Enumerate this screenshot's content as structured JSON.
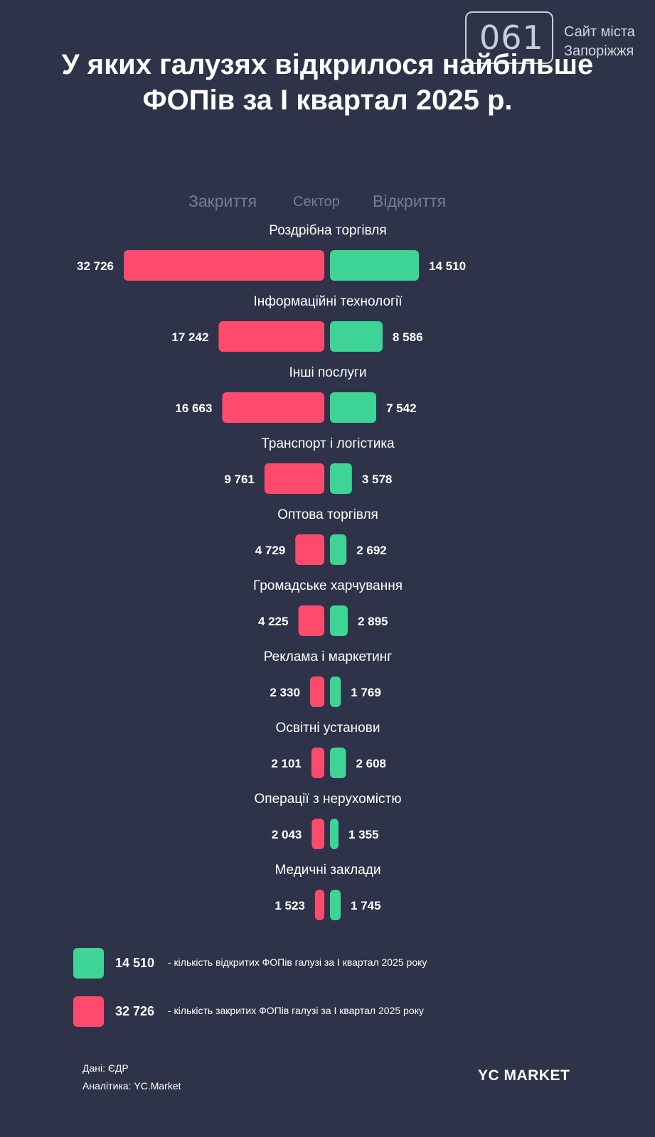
{
  "logo": {
    "number": "061",
    "line1": "Сайт міста",
    "line2": "Запоріжжя"
  },
  "title": {
    "line1": "У яких галузях відкрилося найбільше",
    "line2": "ФОПів за I квартал 2025 р."
  },
  "headers": {
    "closed": "Закриття",
    "sector": "Сектор",
    "opened": "Відкриття"
  },
  "colors": {
    "background": "#2f3349",
    "closed": "#fe4b6d",
    "opened": "#3dd496"
  },
  "chart_data": {
    "type": "bar",
    "orientation": "horizontal, diverging",
    "categories": [
      "Роздрібна торгівля",
      "Інформаційні технології",
      "Інші послуги",
      "Транспорт і логістика",
      "Оптова торгівля",
      "Громадське харчування",
      "Реклама і маркетинг",
      "Освітні установи",
      "Операції з нерухомістю",
      "Медичні заклади"
    ],
    "series": [
      {
        "name": "Закриття",
        "color": "#fe4b6d",
        "values": [
          32726,
          17242,
          16663,
          9761,
          4729,
          4225,
          2330,
          2101,
          2043,
          1523
        ],
        "labels": [
          "32 726",
          "17 242",
          "16 663",
          "9 761",
          "4 729",
          "4 225",
          "2 330",
          "2 101",
          "2 043",
          "1 523"
        ]
      },
      {
        "name": "Відкриття",
        "color": "#3dd496",
        "values": [
          14510,
          8586,
          7542,
          3578,
          2692,
          2895,
          1769,
          2608,
          1355,
          1745
        ],
        "labels": [
          "14 510",
          "8 586",
          "7 542",
          "3 578",
          "2 692",
          "2 895",
          "1 769",
          "2 608",
          "1 355",
          "1 745"
        ]
      }
    ]
  },
  "legend": [
    {
      "value": "14 510",
      "text": "- кількість відкритих ФОПів галузі за I квартал 2025 року",
      "color": "#3dd496"
    },
    {
      "value": "32 726",
      "text": "- кількість закритих ФОПів галузі за I квартал 2025 року",
      "color": "#fe4b6d"
    }
  ],
  "footer": {
    "source": "Дані: ЄДР",
    "analytics": "Аналітика: YC.Market",
    "brand": "YC MARKET"
  }
}
